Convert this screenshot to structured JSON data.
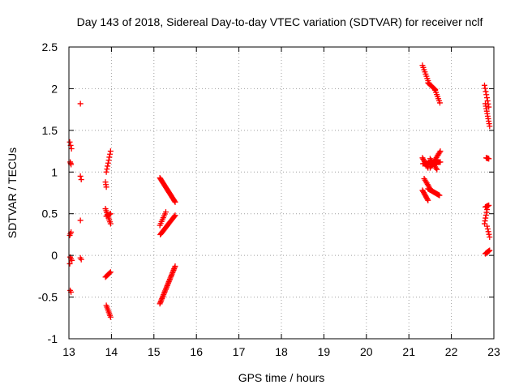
{
  "chart_data": {
    "type": "scatter",
    "title": "Day 143 of 2018, Sidereal Day-to-day VTEC variation (SDTVAR) for receiver nclf",
    "xlabel": "GPS time / hours",
    "ylabel": "SDTVAR / TECUs",
    "xlim": [
      13,
      23
    ],
    "ylim": [
      -1,
      2.5
    ],
    "xticks": [
      13,
      14,
      15,
      16,
      17,
      18,
      19,
      20,
      21,
      22,
      23
    ],
    "yticks": [
      -1,
      -0.5,
      0,
      0.5,
      1,
      1.5,
      2,
      2.5
    ],
    "xtick_labels": [
      "13",
      "14",
      "15",
      "16",
      "17",
      "18",
      "19",
      "20",
      "21",
      "22",
      "23"
    ],
    "ytick_labels": [
      "-1",
      "-0.5",
      "0",
      "0.5",
      "1",
      "1.5",
      "2",
      "2.5"
    ],
    "grid": true,
    "marker": "+",
    "marker_color": "#ff0000",
    "series": [
      {
        "name": "SDTVAR",
        "segments": [
          {
            "x0": 13.02,
            "x1": 13.06,
            "y0": 1.36,
            "y1": 1.28,
            "n": 3
          },
          {
            "x0": 13.03,
            "x1": 13.05,
            "y0": 1.12,
            "y1": 1.09,
            "n": 3
          },
          {
            "x0": 13.02,
            "x1": 13.05,
            "y0": 0.24,
            "y1": 0.28,
            "n": 3
          },
          {
            "x0": 13.03,
            "x1": 13.07,
            "y0": -0.02,
            "y1": -0.06,
            "n": 3
          },
          {
            "x0": 13.02,
            "x1": 13.02,
            "y0": -0.1,
            "y1": -0.1,
            "n": 1
          },
          {
            "x0": 13.03,
            "x1": 13.05,
            "y0": -0.42,
            "y1": -0.44,
            "n": 2
          },
          {
            "x0": 13.27,
            "x1": 13.27,
            "y0": 1.82,
            "y1": 1.82,
            "n": 1
          },
          {
            "x0": 13.27,
            "x1": 13.29,
            "y0": 0.95,
            "y1": 0.91,
            "n": 2
          },
          {
            "x0": 13.27,
            "x1": 13.27,
            "y0": 0.42,
            "y1": 0.42,
            "n": 1
          },
          {
            "x0": 13.27,
            "x1": 13.29,
            "y0": -0.03,
            "y1": -0.05,
            "n": 2
          },
          {
            "x0": 13.86,
            "x1": 13.88,
            "y0": 0.88,
            "y1": 0.82,
            "n": 3
          },
          {
            "x0": 13.88,
            "x1": 13.98,
            "y0": 1.0,
            "y1": 1.25,
            "n": 8
          },
          {
            "x0": 13.86,
            "x1": 13.98,
            "y0": 0.56,
            "y1": 0.38,
            "n": 9
          },
          {
            "x0": 13.88,
            "x1": 13.98,
            "y0": 0.47,
            "y1": 0.5,
            "n": 5
          },
          {
            "x0": 13.86,
            "x1": 13.98,
            "y0": -0.26,
            "y1": -0.2,
            "n": 7
          },
          {
            "x0": 13.88,
            "x1": 13.98,
            "y0": -0.6,
            "y1": -0.74,
            "n": 8
          },
          {
            "x0": 15.14,
            "x1": 15.5,
            "y0": 0.93,
            "y1": 0.64,
            "n": 26
          },
          {
            "x0": 15.14,
            "x1": 15.28,
            "y0": 0.36,
            "y1": 0.52,
            "n": 8
          },
          {
            "x0": 15.15,
            "x1": 15.5,
            "y0": 0.25,
            "y1": 0.48,
            "n": 22
          },
          {
            "x0": 15.14,
            "x1": 15.5,
            "y0": -0.58,
            "y1": -0.13,
            "n": 30
          },
          {
            "x0": 21.32,
            "x1": 21.47,
            "y0": 2.28,
            "y1": 2.07,
            "n": 9
          },
          {
            "x0": 21.45,
            "x1": 21.62,
            "y0": 2.07,
            "y1": 1.99,
            "n": 10
          },
          {
            "x0": 21.62,
            "x1": 21.73,
            "y0": 1.98,
            "y1": 1.83,
            "n": 7
          },
          {
            "x0": 21.32,
            "x1": 21.45,
            "y0": 1.17,
            "y1": 1.05,
            "n": 9
          },
          {
            "x0": 21.33,
            "x1": 21.74,
            "y0": 1.1,
            "y1": 1.12,
            "n": 24
          },
          {
            "x0": 21.5,
            "x1": 21.74,
            "y0": 1.05,
            "y1": 1.25,
            "n": 14
          },
          {
            "x0": 21.5,
            "x1": 21.66,
            "y0": 1.16,
            "y1": 1.03,
            "n": 9
          },
          {
            "x0": 21.32,
            "x1": 21.45,
            "y0": 0.78,
            "y1": 0.66,
            "n": 10
          },
          {
            "x0": 21.36,
            "x1": 21.5,
            "y0": 0.92,
            "y1": 0.8,
            "n": 8
          },
          {
            "x0": 21.45,
            "x1": 21.72,
            "y0": 0.8,
            "y1": 0.72,
            "n": 16
          },
          {
            "x0": 22.78,
            "x1": 22.88,
            "y0": 2.04,
            "y1": 1.78,
            "n": 8
          },
          {
            "x0": 22.8,
            "x1": 22.9,
            "y0": 1.82,
            "y1": 1.55,
            "n": 10
          },
          {
            "x0": 22.82,
            "x1": 22.88,
            "y0": 1.17,
            "y1": 1.16,
            "n": 6
          },
          {
            "x0": 22.8,
            "x1": 22.88,
            "y0": 0.58,
            "y1": 0.6,
            "n": 8
          },
          {
            "x0": 22.78,
            "x1": 22.84,
            "y0": 0.38,
            "y1": 0.55,
            "n": 6
          },
          {
            "x0": 22.84,
            "x1": 22.9,
            "y0": 0.35,
            "y1": 0.22,
            "n": 5
          },
          {
            "x0": 22.8,
            "x1": 22.9,
            "y0": 0.02,
            "y1": 0.06,
            "n": 9
          }
        ]
      }
    ]
  }
}
